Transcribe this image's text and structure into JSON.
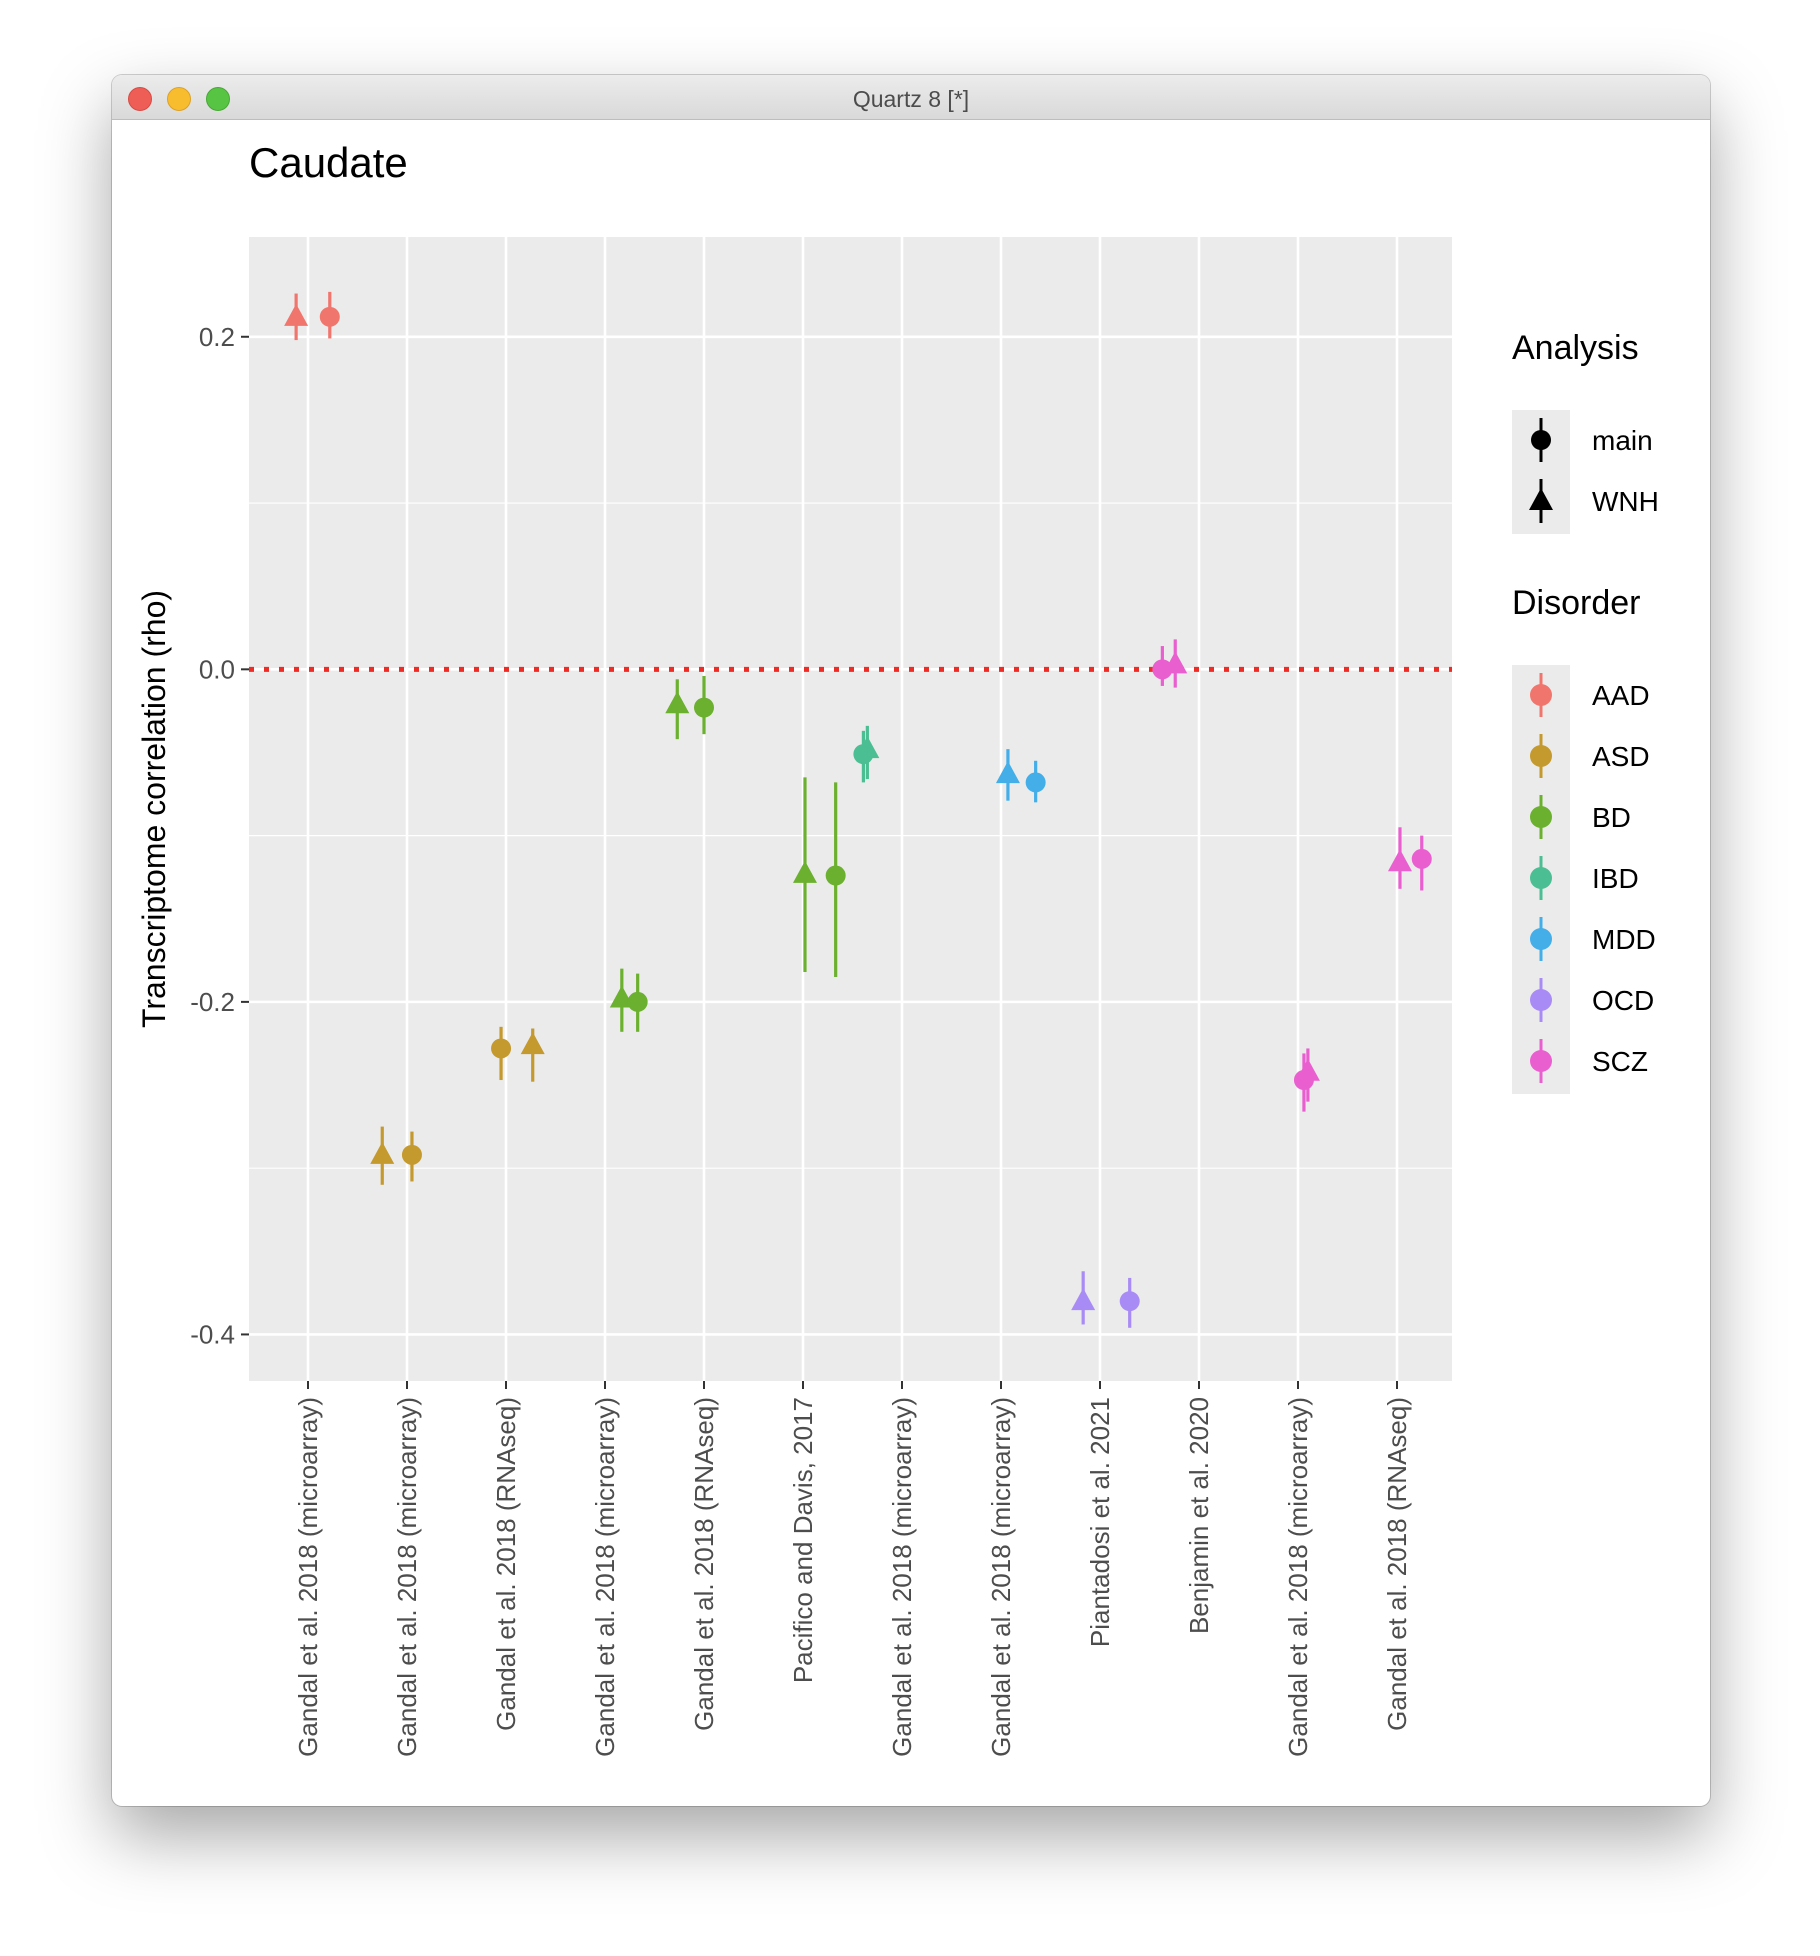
{
  "window": {
    "title": "Quartz 8 [*]"
  },
  "chart_data": {
    "type": "scatter",
    "title": "Caudate",
    "ylabel": "Transcriptome correlation (rho)",
    "xlabel": "",
    "ylim": [
      -0.428,
      0.26
    ],
    "yticks": [
      0.2,
      0.0,
      -0.2,
      -0.4
    ],
    "ytick_labels": [
      "0.2",
      "0.0",
      "-0.2",
      "-0.4"
    ],
    "categories": [
      "Gandal et al. 2018 (microarray)",
      "Gandal et al. 2018 (microarray)",
      "Gandal et al. 2018 (RNAseq)",
      "Gandal et al. 2018 (microarray)",
      "Gandal et al. 2018 (RNAseq)",
      "Pacifico and Davis, 2017",
      "Gandal et al. 2018 (microarray)",
      "Gandal et al. 2018 (microarray)",
      "Piantadosi et al. 2021",
      "Benjamin et al. 2020",
      "Gandal et al. 2018 (microarray)",
      "Gandal et al. 2018 (RNAseq)"
    ],
    "reference_line": {
      "y": 0,
      "style": "dotted",
      "color": "#ee2b24"
    },
    "grid": true,
    "legend_position": "right",
    "legends": [
      {
        "title": "Analysis",
        "entries": [
          {
            "label": "main",
            "shape": "circle"
          },
          {
            "label": "WNH",
            "shape": "triangle"
          }
        ]
      },
      {
        "title": "Disorder",
        "entries": [
          {
            "label": "AAD",
            "color": "#f0766d"
          },
          {
            "label": "ASD",
            "color": "#c49a2e"
          },
          {
            "label": "BD",
            "color": "#6bb02e"
          },
          {
            "label": "IBD",
            "color": "#4cbe94"
          },
          {
            "label": "MDD",
            "color": "#43aee8"
          },
          {
            "label": "OCD",
            "color": "#a98bf5"
          },
          {
            "label": "SCZ",
            "color": "#ea5fd0"
          }
        ]
      }
    ],
    "series": [
      {
        "disorder": "AAD",
        "analysis": "WNH",
        "x": 1,
        "x_offset": -0.12,
        "y": 0.212,
        "ymin": 0.198,
        "ymax": 0.226
      },
      {
        "disorder": "AAD",
        "analysis": "main",
        "x": 1,
        "x_offset": 0.22,
        "y": 0.212,
        "ymin": 0.199,
        "ymax": 0.227
      },
      {
        "disorder": "ASD",
        "analysis": "WNH",
        "x": 2,
        "x_offset": -0.25,
        "y": -0.292,
        "ymin": -0.31,
        "ymax": -0.275
      },
      {
        "disorder": "ASD",
        "analysis": "main",
        "x": 2,
        "x_offset": 0.05,
        "y": -0.292,
        "ymin": -0.308,
        "ymax": -0.278
      },
      {
        "disorder": "ASD",
        "analysis": "main",
        "x": 3,
        "x_offset": -0.05,
        "y": -0.228,
        "ymin": -0.247,
        "ymax": -0.215
      },
      {
        "disorder": "ASD",
        "analysis": "WNH",
        "x": 3,
        "x_offset": 0.27,
        "y": -0.226,
        "ymin": -0.248,
        "ymax": -0.216
      },
      {
        "disorder": "BD",
        "analysis": "WNH",
        "x": 4,
        "x_offset": 0.17,
        "y": -0.198,
        "ymin": -0.218,
        "ymax": -0.18
      },
      {
        "disorder": "BD",
        "analysis": "main",
        "x": 4,
        "x_offset": 0.33,
        "y": -0.2,
        "ymin": -0.218,
        "ymax": -0.183
      },
      {
        "disorder": "BD",
        "analysis": "WNH",
        "x": 5,
        "x_offset": -0.27,
        "y": -0.021,
        "ymin": -0.042,
        "ymax": -0.006
      },
      {
        "disorder": "BD",
        "analysis": "main",
        "x": 5,
        "x_offset": 0.0,
        "y": -0.023,
        "ymin": -0.039,
        "ymax": -0.004
      },
      {
        "disorder": "BD",
        "analysis": "WNH",
        "x": 6,
        "x_offset": 0.02,
        "y": -0.123,
        "ymin": -0.182,
        "ymax": -0.065
      },
      {
        "disorder": "BD",
        "analysis": "main",
        "x": 6,
        "x_offset": 0.33,
        "y": -0.124,
        "ymin": -0.185,
        "ymax": -0.068
      },
      {
        "disorder": "IBD",
        "analysis": "main",
        "x": 7,
        "x_offset": -0.39,
        "y": -0.051,
        "ymin": -0.068,
        "ymax": -0.037
      },
      {
        "disorder": "IBD",
        "analysis": "WNH",
        "x": 7,
        "x_offset": -0.35,
        "y": -0.048,
        "ymin": -0.066,
        "ymax": -0.034
      },
      {
        "disorder": "MDD",
        "analysis": "WNH",
        "x": 8,
        "x_offset": 0.07,
        "y": -0.063,
        "ymin": -0.079,
        "ymax": -0.048
      },
      {
        "disorder": "MDD",
        "analysis": "main",
        "x": 8,
        "x_offset": 0.35,
        "y": -0.068,
        "ymin": -0.08,
        "ymax": -0.055
      },
      {
        "disorder": "OCD",
        "analysis": "WNH",
        "x": 9,
        "x_offset": -0.17,
        "y": -0.38,
        "ymin": -0.394,
        "ymax": -0.362
      },
      {
        "disorder": "OCD",
        "analysis": "main",
        "x": 9,
        "x_offset": 0.3,
        "y": -0.38,
        "ymin": -0.396,
        "ymax": -0.366
      },
      {
        "disorder": "SCZ",
        "analysis": "main",
        "x": 10,
        "x_offset": -0.37,
        "y": 0.0,
        "ymin": -0.01,
        "ymax": 0.014
      },
      {
        "disorder": "SCZ",
        "analysis": "WNH",
        "x": 10,
        "x_offset": -0.24,
        "y": 0.003,
        "ymin": -0.011,
        "ymax": 0.018
      },
      {
        "disorder": "SCZ",
        "analysis": "main",
        "x": 11,
        "x_offset": 0.06,
        "y": -0.247,
        "ymin": -0.266,
        "ymax": -0.231
      },
      {
        "disorder": "SCZ",
        "analysis": "WNH",
        "x": 11,
        "x_offset": 0.1,
        "y": -0.242,
        "ymin": -0.26,
        "ymax": -0.228
      },
      {
        "disorder": "SCZ",
        "analysis": "WNH",
        "x": 12,
        "x_offset": 0.03,
        "y": -0.116,
        "ymin": -0.132,
        "ymax": -0.095
      },
      {
        "disorder": "SCZ",
        "analysis": "main",
        "x": 12,
        "x_offset": 0.25,
        "y": -0.114,
        "ymin": -0.133,
        "ymax": -0.1
      }
    ]
  }
}
